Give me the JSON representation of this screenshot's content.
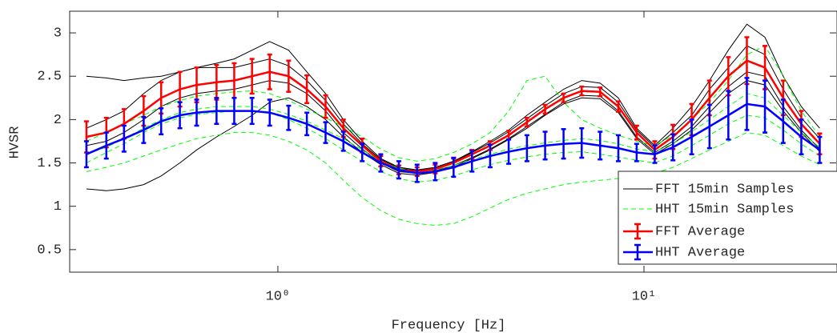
{
  "chart_data": {
    "type": "line",
    "xlabel": "Frequency [Hz]",
    "ylabel": "HVSR",
    "xscale": "log",
    "xlim": [
      0.27,
      33.5
    ],
    "ylim": [
      0.24,
      3.25
    ],
    "xticks": [
      {
        "value": 1,
        "label": "10⁰"
      },
      {
        "value": 10,
        "label": "10¹"
      }
    ],
    "yticks": [
      0.5,
      1,
      1.5,
      2,
      2.5,
      3
    ],
    "legend": "lower right",
    "x": [
      0.3,
      0.34,
      0.38,
      0.43,
      0.48,
      0.54,
      0.6,
      0.68,
      0.76,
      0.85,
      0.95,
      1.07,
      1.2,
      1.35,
      1.51,
      1.7,
      1.91,
      2.14,
      2.4,
      2.69,
      3.02,
      3.39,
      3.8,
      4.27,
      4.79,
      5.37,
      6.03,
      6.76,
      7.59,
      8.51,
      9.55,
      10.7,
      12.0,
      13.5,
      15.1,
      17.0,
      19.1,
      21.4,
      24.0,
      26.9,
      30.2
    ],
    "series": [
      {
        "name": "FFT 15min Samples",
        "color": "#000000",
        "dash": false,
        "lines": [
          [
            1.9,
            2.0,
            2.1,
            2.3,
            2.45,
            2.55,
            2.6,
            2.65,
            2.7,
            2.8,
            2.9,
            2.8,
            2.55,
            2.3,
            2.0,
            1.75,
            1.55,
            1.45,
            1.42,
            1.45,
            1.52,
            1.63,
            1.75,
            1.88,
            2.05,
            2.2,
            2.35,
            2.45,
            2.42,
            2.25,
            1.9,
            1.7,
            1.9,
            2.15,
            2.45,
            2.8,
            3.1,
            2.95,
            2.5,
            2.15,
            1.9
          ],
          [
            1.7,
            1.75,
            1.85,
            2.0,
            2.15,
            2.25,
            2.3,
            2.33,
            2.35,
            2.4,
            2.45,
            2.42,
            2.3,
            2.1,
            1.85,
            1.66,
            1.5,
            1.4,
            1.38,
            1.41,
            1.47,
            1.56,
            1.66,
            1.78,
            1.92,
            2.06,
            2.2,
            2.28,
            2.27,
            2.1,
            1.8,
            1.62,
            1.75,
            1.92,
            2.15,
            2.38,
            2.55,
            2.5,
            2.15,
            1.88,
            1.66
          ],
          [
            1.2,
            1.18,
            1.2,
            1.25,
            1.35,
            1.5,
            1.65,
            1.8,
            1.92,
            2.05,
            2.2,
            2.25,
            2.15,
            2.0,
            1.8,
            1.62,
            1.48,
            1.38,
            1.36,
            1.39,
            1.45,
            1.55,
            1.65,
            1.77,
            1.9,
            2.05,
            2.18,
            2.25,
            2.24,
            2.08,
            1.78,
            1.6,
            1.72,
            1.88,
            2.08,
            2.3,
            2.45,
            2.4,
            2.1,
            1.85,
            1.63
          ],
          [
            2.5,
            2.48,
            2.45,
            2.48,
            2.5,
            2.55,
            2.6,
            2.6,
            2.6,
            2.65,
            2.7,
            2.62,
            2.45,
            2.22,
            1.95,
            1.72,
            1.54,
            1.44,
            1.41,
            1.44,
            1.51,
            1.62,
            1.73,
            1.86,
            2.01,
            2.16,
            2.3,
            2.38,
            2.37,
            2.2,
            1.88,
            1.68,
            1.85,
            2.05,
            2.35,
            2.6,
            2.85,
            2.75,
            2.35,
            2.02,
            1.78
          ]
        ]
      },
      {
        "name": "HHT 15min Samples",
        "color": "#00ff00",
        "dash": true,
        "lines": [
          [
            1.5,
            1.62,
            1.72,
            1.85,
            1.95,
            2.02,
            2.06,
            2.08,
            2.1,
            2.1,
            2.08,
            2.0,
            1.9,
            1.78,
            1.65,
            1.52,
            1.4,
            1.32,
            1.28,
            1.3,
            1.35,
            1.42,
            1.48,
            1.53,
            1.57,
            1.6,
            1.62,
            1.63,
            1.6,
            1.57,
            1.53,
            1.5,
            1.58,
            1.7,
            1.82,
            1.95,
            2.05,
            2.02,
            1.88,
            1.72,
            1.58
          ],
          [
            1.75,
            1.85,
            1.95,
            2.05,
            2.15,
            2.22,
            2.27,
            2.3,
            2.32,
            2.33,
            2.3,
            2.22,
            2.12,
            2.02,
            1.92,
            1.8,
            1.66,
            1.56,
            1.52,
            1.55,
            1.62,
            1.72,
            1.85,
            2.1,
            2.45,
            2.5,
            2.2,
            2.0,
            1.9,
            1.82,
            1.75,
            1.7,
            1.82,
            2.0,
            2.2,
            2.45,
            2.75,
            2.85,
            2.5,
            2.1,
            1.8
          ],
          [
            1.4,
            1.45,
            1.5,
            1.58,
            1.65,
            1.72,
            1.78,
            1.82,
            1.85,
            1.85,
            1.82,
            1.75,
            1.65,
            1.5,
            1.3,
            1.1,
            0.95,
            0.85,
            0.8,
            0.78,
            0.8,
            0.88,
            0.98,
            1.08,
            1.15,
            1.2,
            1.25,
            1.28,
            1.3,
            1.32,
            1.35,
            1.38,
            1.45,
            1.55,
            1.65,
            1.75,
            1.85,
            1.82,
            1.7,
            1.58,
            1.48
          ],
          [
            1.6,
            1.68,
            1.78,
            1.9,
            2.0,
            2.08,
            2.12,
            2.15,
            2.15,
            2.15,
            2.12,
            2.06,
            1.98,
            1.88,
            1.78,
            1.65,
            1.52,
            1.44,
            1.4,
            1.42,
            1.47,
            1.54,
            1.6,
            1.66,
            1.7,
            1.73,
            1.76,
            1.78,
            1.76,
            1.72,
            1.66,
            1.63,
            1.72,
            1.86,
            2.0,
            2.15,
            2.3,
            2.25,
            2.05,
            1.85,
            1.68
          ]
        ]
      }
    ],
    "averages": [
      {
        "name": "FFT Average",
        "color": "#ff0000",
        "values": [
          1.8,
          1.85,
          1.95,
          2.1,
          2.25,
          2.35,
          2.4,
          2.43,
          2.45,
          2.5,
          2.55,
          2.5,
          2.35,
          2.15,
          1.9,
          1.7,
          1.52,
          1.42,
          1.4,
          1.43,
          1.5,
          1.6,
          1.7,
          1.82,
          1.97,
          2.12,
          2.25,
          2.33,
          2.32,
          2.15,
          1.85,
          1.65,
          1.8,
          2.0,
          2.25,
          2.5,
          2.68,
          2.6,
          2.25,
          1.95,
          1.72
        ],
        "errors": [
          0.18,
          0.17,
          0.17,
          0.17,
          0.18,
          0.2,
          0.2,
          0.2,
          0.2,
          0.2,
          0.2,
          0.18,
          0.16,
          0.13,
          0.1,
          0.08,
          0.06,
          0.05,
          0.05,
          0.05,
          0.05,
          0.05,
          0.05,
          0.05,
          0.05,
          0.05,
          0.05,
          0.05,
          0.05,
          0.06,
          0.08,
          0.1,
          0.14,
          0.18,
          0.2,
          0.22,
          0.27,
          0.25,
          0.2,
          0.15,
          0.12
        ]
      },
      {
        "name": "HHT Average",
        "color": "#0000ff",
        "values": [
          1.6,
          1.7,
          1.78,
          1.88,
          1.98,
          2.05,
          2.08,
          2.1,
          2.1,
          2.1,
          2.08,
          2.02,
          1.95,
          1.85,
          1.75,
          1.62,
          1.5,
          1.42,
          1.38,
          1.4,
          1.45,
          1.52,
          1.58,
          1.63,
          1.67,
          1.7,
          1.72,
          1.73,
          1.7,
          1.67,
          1.62,
          1.6,
          1.68,
          1.8,
          1.92,
          2.05,
          2.18,
          2.15,
          1.98,
          1.8,
          1.65
        ],
        "errors": [
          0.15,
          0.15,
          0.15,
          0.15,
          0.15,
          0.15,
          0.15,
          0.15,
          0.15,
          0.15,
          0.15,
          0.14,
          0.13,
          0.12,
          0.11,
          0.1,
          0.1,
          0.1,
          0.1,
          0.1,
          0.11,
          0.12,
          0.13,
          0.14,
          0.15,
          0.16,
          0.17,
          0.17,
          0.16,
          0.15,
          0.1,
          0.1,
          0.15,
          0.2,
          0.25,
          0.28,
          0.3,
          0.3,
          0.25,
          0.2,
          0.15
        ]
      }
    ]
  }
}
